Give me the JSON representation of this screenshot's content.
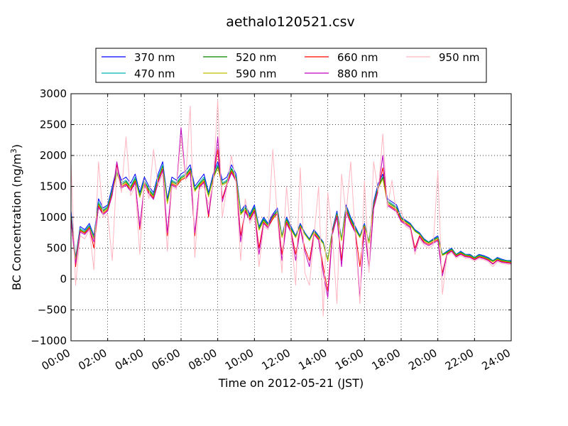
{
  "chart_data": {
    "type": "line",
    "title": "aethalo120521.csv",
    "xlabel": "Time on 2012-05-21 (JST)",
    "ylabel_main": "BC Concentration (ng/m",
    "ylabel_sup": "3",
    "ylabel_close": ")",
    "xlim": [
      0,
      24
    ],
    "ylim": [
      -1000,
      3000
    ],
    "x_ticks": [
      0,
      2,
      4,
      6,
      8,
      10,
      12,
      14,
      16,
      18,
      20,
      22,
      24
    ],
    "x_tick_labels": [
      "00:00",
      "02:00",
      "04:00",
      "06:00",
      "08:00",
      "10:00",
      "12:00",
      "14:00",
      "16:00",
      "18:00",
      "20:00",
      "22:00",
      "24:00"
    ],
    "y_ticks": [
      -1000,
      -500,
      0,
      500,
      1000,
      1500,
      2000,
      2500,
      3000
    ],
    "y_tick_labels": [
      "−1000",
      "−500",
      "0",
      "500",
      "1000",
      "1500",
      "2000",
      "2500",
      "3000"
    ],
    "grid": true,
    "legend_position": "top, above plot, 4 columns",
    "x": [
      0,
      0.25,
      0.5,
      0.75,
      1,
      1.25,
      1.5,
      1.75,
      2,
      2.25,
      2.5,
      2.75,
      3,
      3.25,
      3.5,
      3.75,
      4,
      4.25,
      4.5,
      4.75,
      5,
      5.25,
      5.5,
      5.75,
      6,
      6.25,
      6.5,
      6.75,
      7,
      7.25,
      7.5,
      7.75,
      8,
      8.25,
      8.5,
      8.75,
      9,
      9.25,
      9.5,
      9.75,
      10,
      10.25,
      10.5,
      10.75,
      11,
      11.25,
      11.5,
      11.75,
      12,
      12.25,
      12.5,
      12.75,
      13,
      13.25,
      13.5,
      13.75,
      14,
      14.25,
      14.5,
      14.75,
      15,
      15.25,
      15.5,
      15.75,
      16,
      16.25,
      16.5,
      16.75,
      17,
      17.25,
      17.5,
      17.75,
      18,
      18.25,
      18.5,
      18.75,
      19,
      19.25,
      19.5,
      19.75,
      20,
      20.25,
      20.5,
      20.75,
      21,
      21.25,
      21.5,
      21.75,
      22,
      22.25,
      22.5,
      22.75,
      23,
      23.25,
      23.5,
      23.75,
      24
    ],
    "series": [
      {
        "name": "370 nm",
        "color": "#0000ff",
        "values": [
          1100,
          350,
          850,
          800,
          900,
          700,
          1300,
          1150,
          1200,
          1500,
          1800,
          1600,
          1650,
          1550,
          1700,
          1400,
          1650,
          1500,
          1400,
          1700,
          1900,
          1300,
          1650,
          1600,
          1700,
          1750,
          1850,
          1500,
          1600,
          1700,
          1400,
          1700,
          1900,
          1600,
          1650,
          1850,
          1700,
          1100,
          1200,
          1050,
          1200,
          850,
          1000,
          900,
          1050,
          1150,
          700,
          1000,
          850,
          700,
          900,
          750,
          650,
          800,
          700,
          600,
          300,
          800,
          1100,
          650,
          1200,
          1000,
          850,
          700,
          900,
          600,
          1250,
          1550,
          1700,
          1300,
          1250,
          1200,
          1000,
          950,
          900,
          800,
          750,
          650,
          600,
          650,
          700,
          400,
          450,
          500,
          400,
          450,
          400,
          400,
          350,
          400,
          380,
          350,
          300,
          350,
          320,
          300,
          300
        ]
      },
      {
        "name": "470 nm",
        "color": "#00b3b3",
        "values": [
          1050,
          330,
          820,
          780,
          870,
          680,
          1250,
          1120,
          1180,
          1450,
          1750,
          1560,
          1600,
          1500,
          1650,
          1360,
          1600,
          1460,
          1370,
          1650,
          1850,
          1260,
          1600,
          1560,
          1660,
          1700,
          1800,
          1460,
          1560,
          1650,
          1370,
          1660,
          1850,
          1560,
          1600,
          1800,
          1660,
          1080,
          1170,
          1030,
          1170,
          830,
          980,
          880,
          1030,
          1120,
          690,
          980,
          830,
          690,
          880,
          740,
          640,
          780,
          690,
          590,
          310,
          780,
          1070,
          640,
          1170,
          980,
          830,
          690,
          880,
          600,
          1220,
          1510,
          1660,
          1270,
          1220,
          1170,
          990,
          940,
          890,
          790,
          740,
          640,
          600,
          640,
          680,
          400,
          440,
          490,
          400,
          440,
          400,
          390,
          350,
          390,
          370,
          340,
          300,
          340,
          310,
          300,
          290
        ]
      },
      {
        "name": "520 nm",
        "color": "#008000",
        "values": [
          1020,
          320,
          800,
          760,
          850,
          660,
          1220,
          1100,
          1160,
          1420,
          1720,
          1530,
          1580,
          1480,
          1620,
          1340,
          1580,
          1440,
          1350,
          1620,
          1820,
          1240,
          1580,
          1540,
          1640,
          1680,
          1780,
          1440,
          1540,
          1620,
          1350,
          1640,
          1820,
          1540,
          1580,
          1780,
          1640,
          1060,
          1150,
          1010,
          1150,
          810,
          960,
          870,
          1010,
          1100,
          680,
          960,
          810,
          680,
          870,
          730,
          630,
          770,
          680,
          580,
          300,
          770,
          1050,
          630,
          1150,
          960,
          810,
          680,
          870,
          590,
          1200,
          1490,
          1640,
          1250,
          1200,
          1150,
          980,
          930,
          880,
          780,
          730,
          630,
          590,
          630,
          670,
          390,
          430,
          480,
          390,
          430,
          390,
          380,
          340,
          380,
          360,
          330,
          290,
          330,
          300,
          290,
          280
        ]
      },
      {
        "name": "590 nm",
        "color": "#bfbf00",
        "values": [
          1000,
          300,
          790,
          750,
          840,
          650,
          1200,
          1080,
          1140,
          1400,
          1700,
          1510,
          1560,
          1460,
          1600,
          1320,
          1560,
          1420,
          1330,
          1600,
          1800,
          1220,
          1560,
          1520,
          1620,
          1660,
          1760,
          1420,
          1520,
          1600,
          1330,
          1620,
          1800,
          1520,
          1560,
          1760,
          1620,
          1040,
          1130,
          990,
          1130,
          790,
          940,
          860,
          990,
          1080,
          670,
          940,
          790,
          670,
          860,
          720,
          620,
          760,
          670,
          570,
          290,
          760,
          1040,
          620,
          1130,
          940,
          790,
          670,
          860,
          580,
          1180,
          1470,
          1620,
          1230,
          1180,
          1130,
          970,
          920,
          870,
          770,
          720,
          620,
          580,
          620,
          660,
          380,
          420,
          470,
          380,
          420,
          380,
          370,
          330,
          370,
          350,
          320,
          280,
          320,
          290,
          280,
          270
        ]
      },
      {
        "name": "660 nm",
        "color": "#ff0000",
        "values": [
          980,
          200,
          780,
          740,
          830,
          500,
          1180,
          1060,
          1120,
          1380,
          1850,
          1490,
          1540,
          1440,
          1580,
          800,
          1540,
          1400,
          1310,
          1580,
          1780,
          700,
          1540,
          1500,
          1600,
          1640,
          1740,
          700,
          1500,
          1580,
          1000,
          1600,
          2100,
          1300,
          1540,
          1740,
          1600,
          700,
          1110,
          970,
          1110,
          500,
          920,
          840,
          970,
          1060,
          400,
          920,
          770,
          400,
          840,
          500,
          300,
          740,
          650,
          200,
          -200,
          740,
          1020,
          300,
          1110,
          920,
          770,
          200,
          840,
          200,
          1160,
          1450,
          1800,
          1210,
          1160,
          1110,
          950,
          900,
          850,
          500,
          700,
          600,
          560,
          600,
          640,
          100,
          410,
          460,
          370,
          410,
          370,
          360,
          320,
          360,
          340,
          310,
          250,
          310,
          280,
          270,
          260
        ]
      },
      {
        "name": "880 nm",
        "color": "#bf00bf",
        "values": [
          960,
          250,
          760,
          720,
          810,
          600,
          1160,
          1040,
          1100,
          1360,
          1900,
          1470,
          1520,
          1420,
          1560,
          850,
          1520,
          1380,
          1290,
          1560,
          1760,
          750,
          1520,
          1480,
          2450,
          1620,
          1720,
          750,
          1480,
          1560,
          1050,
          1580,
          2300,
          1250,
          1520,
          1720,
          1580,
          600,
          1090,
          950,
          1090,
          400,
          900,
          820,
          1050,
          1040,
          300,
          900,
          750,
          300,
          820,
          450,
          200,
          720,
          630,
          100,
          -300,
          720,
          1000,
          200,
          1090,
          900,
          750,
          -300,
          820,
          150,
          1140,
          1430,
          2000,
          1190,
          1140,
          1090,
          930,
          880,
          830,
          450,
          680,
          580,
          540,
          580,
          620,
          50,
          400,
          450,
          360,
          400,
          360,
          350,
          310,
          350,
          330,
          300,
          240,
          300,
          270,
          260,
          250
        ]
      },
      {
        "name": "950 nm",
        "color": "#ffb6c1",
        "values": [
          1900,
          -100,
          700,
          650,
          800,
          150,
          1900,
          1000,
          1050,
          300,
          1800,
          1400,
          2300,
          1350,
          1500,
          400,
          1600,
          1300,
          2100,
          1500,
          1700,
          450,
          1500,
          1450,
          2300,
          1600,
          2800,
          350,
          1450,
          1500,
          1200,
          1550,
          2900,
          1000,
          1500,
          2000,
          1550,
          300,
          1300,
          900,
          1050,
          200,
          850,
          800,
          2100,
          1000,
          100,
          1500,
          700,
          -100,
          1800,
          100,
          -100,
          700,
          1500,
          -600,
          1400,
          700,
          -400,
          1700,
          1050,
          1900,
          700,
          -400,
          1600,
          100,
          1900,
          1400,
          2350,
          1150,
          1600,
          1050,
          1100,
          850,
          800,
          400,
          650,
          550,
          500,
          550,
          1750,
          -250,
          380,
          430,
          340,
          380,
          340,
          330,
          290,
          330,
          310,
          280,
          200,
          280,
          250,
          240,
          230
        ]
      }
    ]
  }
}
